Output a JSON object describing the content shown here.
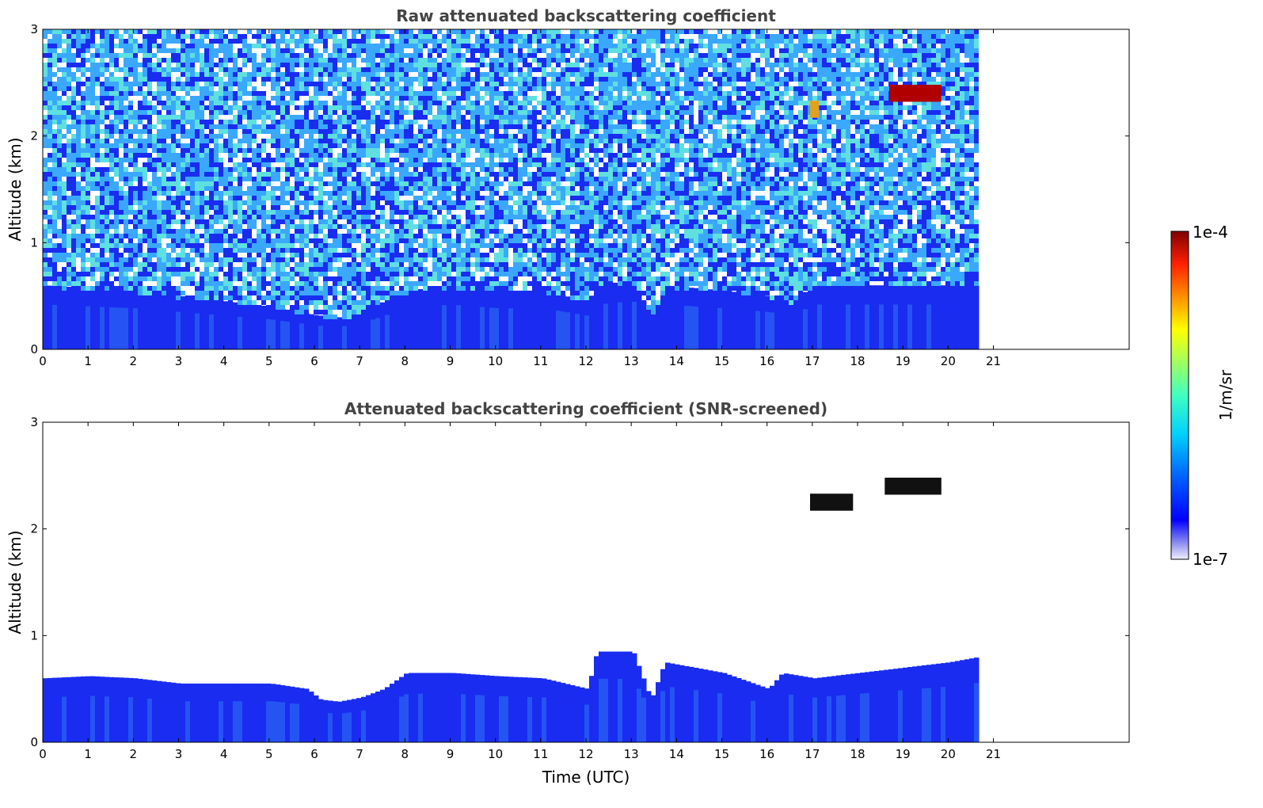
{
  "chart_data": [
    {
      "type": "heatmap",
      "title": "Raw attenuated backscattering coefficient",
      "xlabel": "",
      "ylabel": "Altitude (km)",
      "xlim": [
        0,
        24
      ],
      "ylim": [
        0,
        3
      ],
      "xticks": [
        0,
        1,
        2,
        3,
        4,
        5,
        6,
        7,
        8,
        9,
        10,
        11,
        12,
        13,
        14,
        15,
        16,
        17,
        18,
        19,
        20,
        21
      ],
      "yticks": [
        0,
        1,
        2,
        3
      ],
      "data_end_time": 20.65,
      "colorscale": "jet (log)",
      "description_levels": {
        "boundary_layer_top_km": [
          [
            0,
            0.6
          ],
          [
            2,
            0.55
          ],
          [
            3,
            0.5
          ],
          [
            4,
            0.45
          ],
          [
            5,
            0.4
          ],
          [
            6,
            0.32
          ],
          [
            6.5,
            0.3
          ],
          [
            7,
            0.35
          ],
          [
            8,
            0.55
          ],
          [
            9,
            0.6
          ],
          [
            10,
            0.55
          ],
          [
            11,
            0.55
          ],
          [
            12,
            0.45
          ],
          [
            12.2,
            0.6
          ],
          [
            13,
            0.65
          ],
          [
            13.4,
            0.3
          ],
          [
            13.7,
            0.6
          ],
          [
            15,
            0.55
          ],
          [
            16,
            0.5
          ],
          [
            16.5,
            0.45
          ],
          [
            17,
            0.6
          ],
          [
            20.65,
            0.6
          ]
        ],
        "cloud_segments": [
          {
            "t0": 18.7,
            "t1": 19.85,
            "alt_km": 2.4,
            "level": "1e-4"
          },
          {
            "t0": 16.95,
            "t1": 17.15,
            "alt_km": 2.25,
            "level": "5e-5"
          }
        ]
      }
    },
    {
      "type": "heatmap",
      "title": "Attenuated backscattering coefficient (SNR-screened)",
      "xlabel": "Time (UTC)",
      "ylabel": "Altitude (km)",
      "xlim": [
        0,
        24
      ],
      "ylim": [
        0,
        3
      ],
      "xticks": [
        0,
        1,
        2,
        3,
        4,
        5,
        6,
        7,
        8,
        9,
        10,
        11,
        12,
        13,
        14,
        15,
        16,
        17,
        18,
        19,
        20,
        21
      ],
      "yticks": [
        0,
        1,
        2,
        3
      ],
      "data_end_time": 20.65,
      "colorscale": "jet (log)",
      "description_levels": {
        "layer_top_km": [
          [
            0,
            0.6
          ],
          [
            1,
            0.62
          ],
          [
            2,
            0.6
          ],
          [
            3,
            0.55
          ],
          [
            4,
            0.55
          ],
          [
            5,
            0.55
          ],
          [
            5.8,
            0.5
          ],
          [
            6.1,
            0.4
          ],
          [
            6.5,
            0.38
          ],
          [
            7,
            0.42
          ],
          [
            7.5,
            0.5
          ],
          [
            8,
            0.65
          ],
          [
            9,
            0.65
          ],
          [
            10,
            0.62
          ],
          [
            11,
            0.6
          ],
          [
            12,
            0.5
          ],
          [
            12.2,
            0.85
          ],
          [
            13,
            0.85
          ],
          [
            13.4,
            0.4
          ],
          [
            13.7,
            0.75
          ],
          [
            15,
            0.65
          ],
          [
            16,
            0.5
          ],
          [
            16.3,
            0.65
          ],
          [
            17,
            0.6
          ],
          [
            18,
            0.65
          ],
          [
            19,
            0.7
          ],
          [
            20,
            0.75
          ],
          [
            20.65,
            0.8
          ]
        ],
        "cloud_segments": [
          {
            "t0": 18.6,
            "t1": 19.85,
            "alt_km": 2.4,
            "level": "1e-4"
          },
          {
            "t0": 16.95,
            "t1": 17.9,
            "alt_km": 2.25,
            "level": "1e-4"
          }
        ]
      }
    }
  ],
  "colorbar": {
    "label": "1/m/sr",
    "max_label": "1e-4",
    "min_label": "1e-7",
    "colormap": [
      "#e8e8f8",
      "#b0b0f0",
      "#6060f0",
      "#0000ff",
      "#0040ff",
      "#0080ff",
      "#00c0ff",
      "#00ffff",
      "#40ffc0",
      "#80ff80",
      "#c0ff40",
      "#ffff00",
      "#ffc000",
      "#ff8000",
      "#ff4000",
      "#ff0000",
      "#c00000",
      "#800000"
    ]
  }
}
